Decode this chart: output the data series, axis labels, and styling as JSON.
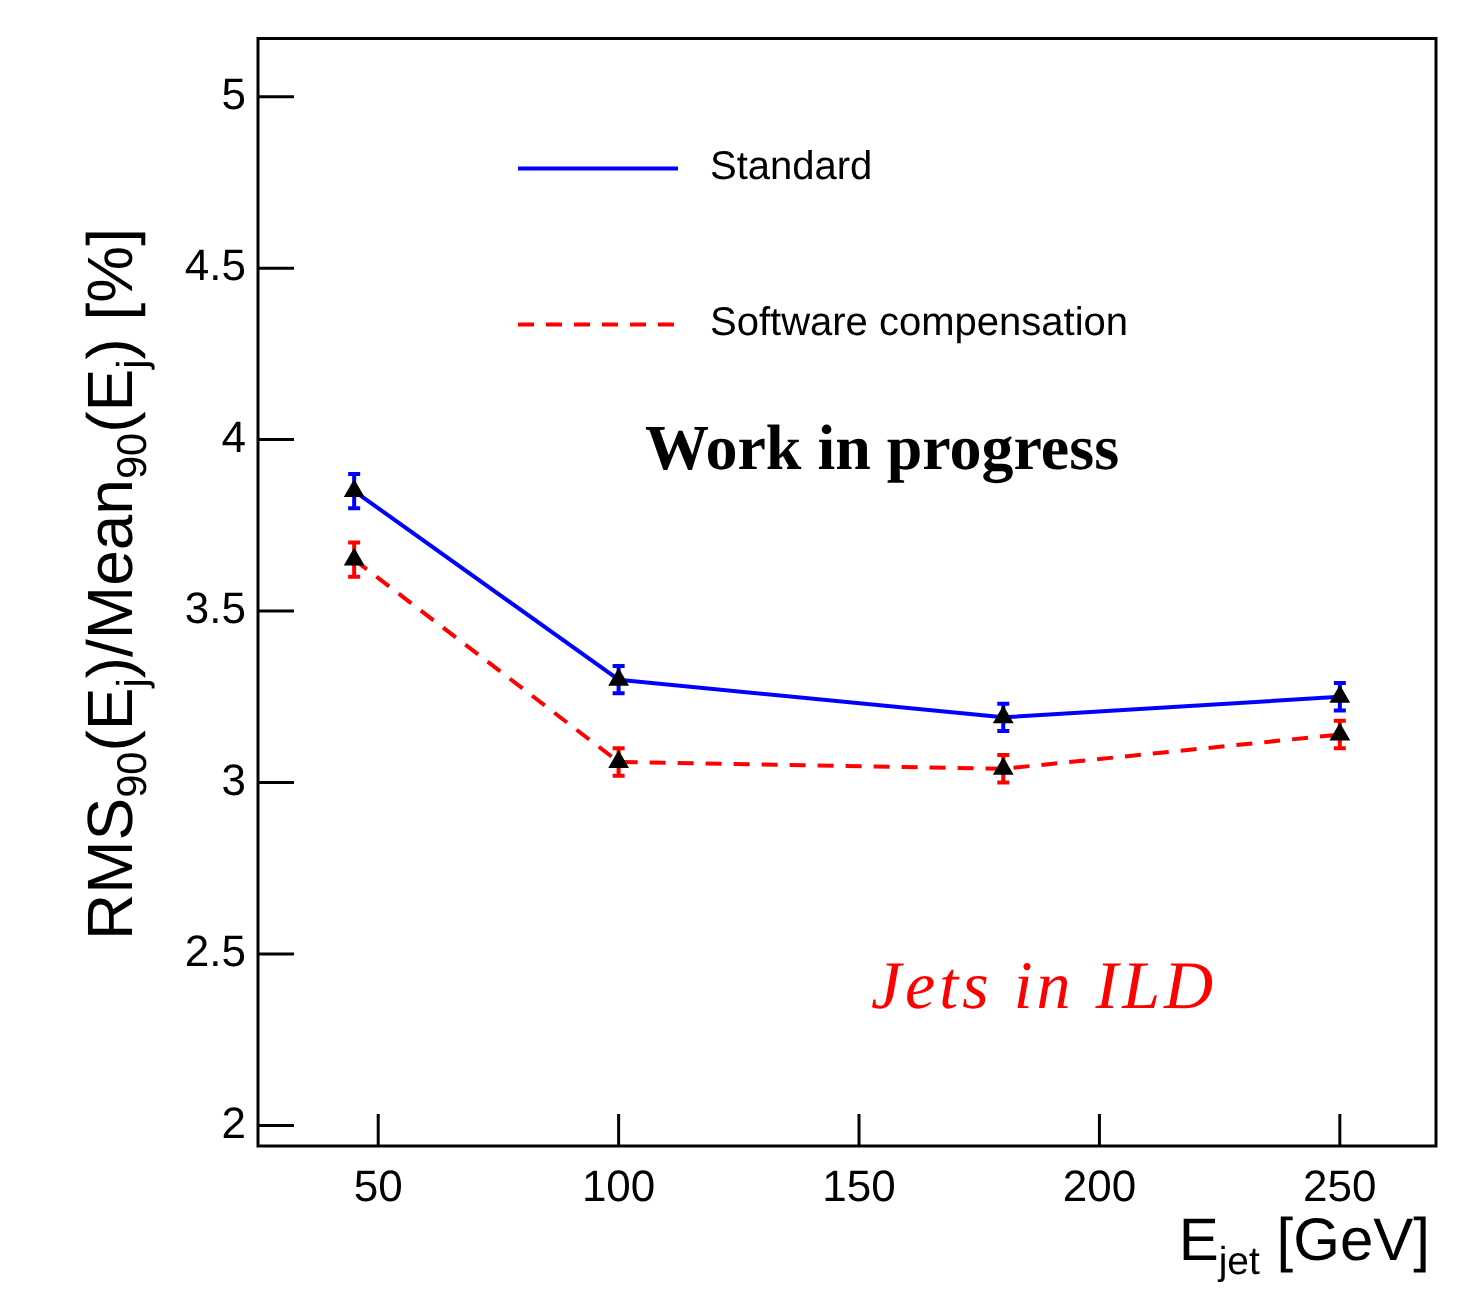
{
  "chart_data": {
    "type": "line",
    "xlabel": "E$_{jet}$ [GeV]",
    "ylabel": "RMS$_{90}$(E$_{j}$)/Mean$_{90}$(E$_{j}$) [%]",
    "x": [
      45,
      100,
      180,
      250
    ],
    "series": [
      {
        "name": "Standard",
        "color": "#0000ff",
        "values": [
          3.85,
          3.3,
          3.19,
          3.25
        ],
        "errors": [
          0.05,
          0.04,
          0.04,
          0.04
        ],
        "line_style": "solid"
      },
      {
        "name": "Software compensation",
        "color": "#ff0000",
        "values": [
          3.65,
          3.06,
          3.04,
          3.14
        ],
        "errors": [
          0.05,
          0.04,
          0.04,
          0.04
        ],
        "line_style": "dashed"
      }
    ],
    "xlim": [
      25,
      270
    ],
    "xticks": [
      50,
      100,
      150,
      200,
      250
    ],
    "ylim": [
      1.94,
      5.17
    ],
    "yticks": [
      2,
      2.5,
      3,
      3.5,
      4,
      4.5,
      5
    ],
    "grid": false,
    "legend": "top right",
    "marker": "triangle",
    "annotations": [
      "Work in progress",
      "Jets in ILD"
    ]
  }
}
